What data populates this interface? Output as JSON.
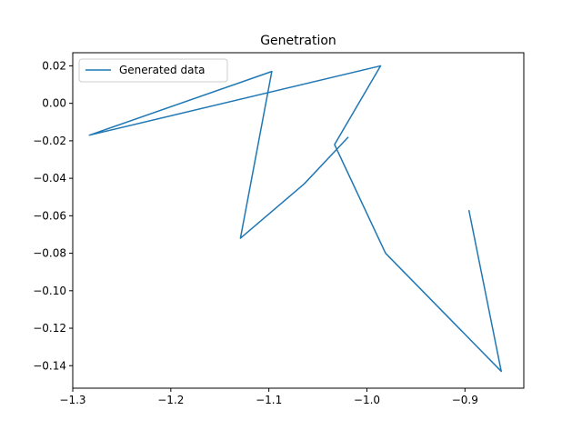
{
  "chart_data": {
    "type": "line",
    "title": "Genetration",
    "xlabel": "",
    "ylabel": "",
    "xlim": [
      -1.3,
      -0.84
    ],
    "ylim": [
      -0.152,
      0.027
    ],
    "xticks": [
      -1.3,
      -1.2,
      -1.1,
      -1.0,
      -0.9
    ],
    "xtick_labels": [
      "−1.3",
      "−1.2",
      "−1.1",
      "−1.0",
      "−0.9"
    ],
    "yticks": [
      0.02,
      0.0,
      -0.02,
      -0.04,
      -0.06,
      -0.08,
      -0.1,
      -0.12,
      -0.14
    ],
    "ytick_labels": [
      "0.02",
      "0.00",
      "−0.02",
      "−0.04",
      "−0.06",
      "−0.08",
      "−0.10",
      "−0.12",
      "−0.14"
    ],
    "grid": false,
    "legend_position": "upper-left",
    "series": [
      {
        "name": "Generated data",
        "color": "#1f77b4",
        "x": [
          -1.019,
          -1.064,
          -1.129,
          -1.097,
          -1.283,
          -0.986,
          -1.033,
          -0.981,
          -0.863,
          -0.896
        ],
        "y": [
          -0.018,
          -0.043,
          -0.072,
          0.017,
          -0.017,
          0.02,
          -0.022,
          -0.08,
          -0.143,
          -0.057
        ]
      }
    ]
  }
}
